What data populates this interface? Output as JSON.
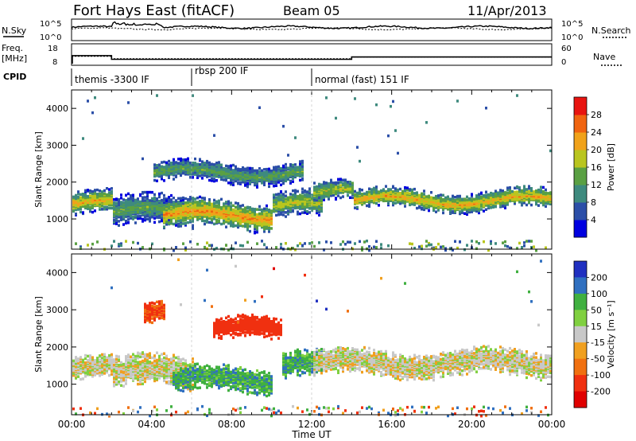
{
  "header": {
    "station": "Fort Hays East (fitACF)",
    "beam": "Beam 05",
    "date": "11/Apr/2013"
  },
  "noise_panel": {
    "left_label": "N.Sky",
    "left_ticks": [
      "10^5",
      "10^0"
    ],
    "right_label": "N.Search",
    "right_ticks": [
      "10^5",
      "10^0"
    ]
  },
  "freq_panel": {
    "left_label_line1": "Freq.",
    "left_label_line2": "[MHz]",
    "left_ticks": [
      "18",
      "8"
    ],
    "right_label": "Nave",
    "right_ticks": [
      "60",
      "0"
    ]
  },
  "cpid_panel": {
    "label": "CPID",
    "modes": [
      {
        "start_hour": 0.0,
        "end_hour": 6.0,
        "label": "themis -3300 IF"
      },
      {
        "start_hour": 6.0,
        "end_hour": 12.0,
        "label": "rbsp 200 IF"
      },
      {
        "start_hour": 12.0,
        "end_hour": 24.0,
        "label": "normal (fast) 151 IF"
      }
    ]
  },
  "chart_data": [
    {
      "type": "heatmap",
      "quantity": "power",
      "xlabel": "",
      "ylabel": "Slant Range [km]",
      "xlim": [
        0,
        24
      ],
      "ylim": [
        180,
        4500
      ],
      "yticks": [
        1000,
        2000,
        3000,
        4000
      ],
      "colorbar": {
        "label": "Power [dB]",
        "ticks": [
          "4",
          "8",
          "12",
          "16",
          "20",
          "24",
          "28"
        ],
        "colors": [
          "#0000e0",
          "#2c4fa8",
          "#3e8a7e",
          "#5aa043",
          "#b9c51f",
          "#f0a21a",
          "#f06410",
          "#e81410"
        ]
      },
      "echo_bands": [
        {
          "start_hour": 0.0,
          "end_hour": 2.0,
          "center_km": 1450,
          "half_width_km": 230,
          "peak_power_db": 22
        },
        {
          "start_hour": 2.0,
          "end_hour": 6.0,
          "center_km": 1250,
          "half_width_km": 300,
          "peak_power_db": 14
        },
        {
          "start_hour": 4.5,
          "end_hour": 10.0,
          "center_km": 1150,
          "half_width_km": 280,
          "peak_power_db": 24
        },
        {
          "start_hour": 4.0,
          "end_hour": 11.5,
          "center_km": 2300,
          "half_width_km": 200,
          "peak_power_db": 14
        },
        {
          "start_hour": 10.0,
          "end_hour": 12.5,
          "center_km": 1400,
          "half_width_km": 260,
          "peak_power_db": 18
        },
        {
          "start_hour": 12.0,
          "end_hour": 14.0,
          "center_km": 1750,
          "half_width_km": 200,
          "peak_power_db": 18
        },
        {
          "start_hour": 14.0,
          "end_hour": 24.0,
          "center_km": 1550,
          "half_width_km": 200,
          "peak_power_db": 22
        }
      ]
    },
    {
      "type": "heatmap",
      "quantity": "velocity",
      "xlabel": "Time UT",
      "ylabel": "Slant Range [km]",
      "xlim": [
        0,
        24
      ],
      "ylim": [
        180,
        4500
      ],
      "xticks": [
        "00:00",
        "04:00",
        "08:00",
        "12:00",
        "16:00",
        "20:00",
        "00:00"
      ],
      "yticks": [
        1000,
        2000,
        3000,
        4000
      ],
      "colorbar": {
        "label": "Velocity [m s⁻¹]",
        "ticks": [
          "200",
          "100",
          "50",
          "15",
          "-15",
          "-50",
          "-100",
          "-200"
        ],
        "colors": [
          "#2030c0",
          "#3070c0",
          "#40b040",
          "#80d040",
          "#c8c8c8",
          "#f0a020",
          "#f07010",
          "#f03010",
          "#e00000"
        ]
      },
      "echo_bands": [
        {
          "start_hour": 0.0,
          "end_hour": 2.0,
          "center_km": 1450,
          "half_width_km": 230,
          "velocity_ms": 0
        },
        {
          "start_hour": 2.0,
          "end_hour": 6.0,
          "center_km": 1350,
          "half_width_km": 320,
          "velocity_ms": 0
        },
        {
          "start_hour": 3.5,
          "end_hour": 4.6,
          "center_km": 2950,
          "half_width_km": 220,
          "velocity_ms": -80
        },
        {
          "start_hour": 5.0,
          "end_hour": 10.0,
          "center_km": 1150,
          "half_width_km": 250,
          "velocity_ms": 60
        },
        {
          "start_hour": 7.0,
          "end_hour": 10.5,
          "center_km": 2500,
          "half_width_km": 220,
          "velocity_ms": -120
        },
        {
          "start_hour": 10.5,
          "end_hour": 12.5,
          "center_km": 1550,
          "half_width_km": 260,
          "velocity_ms": 60
        },
        {
          "start_hour": 12.0,
          "end_hour": 24.0,
          "center_km": 1600,
          "half_width_km": 260,
          "velocity_ms": 0
        }
      ]
    }
  ]
}
